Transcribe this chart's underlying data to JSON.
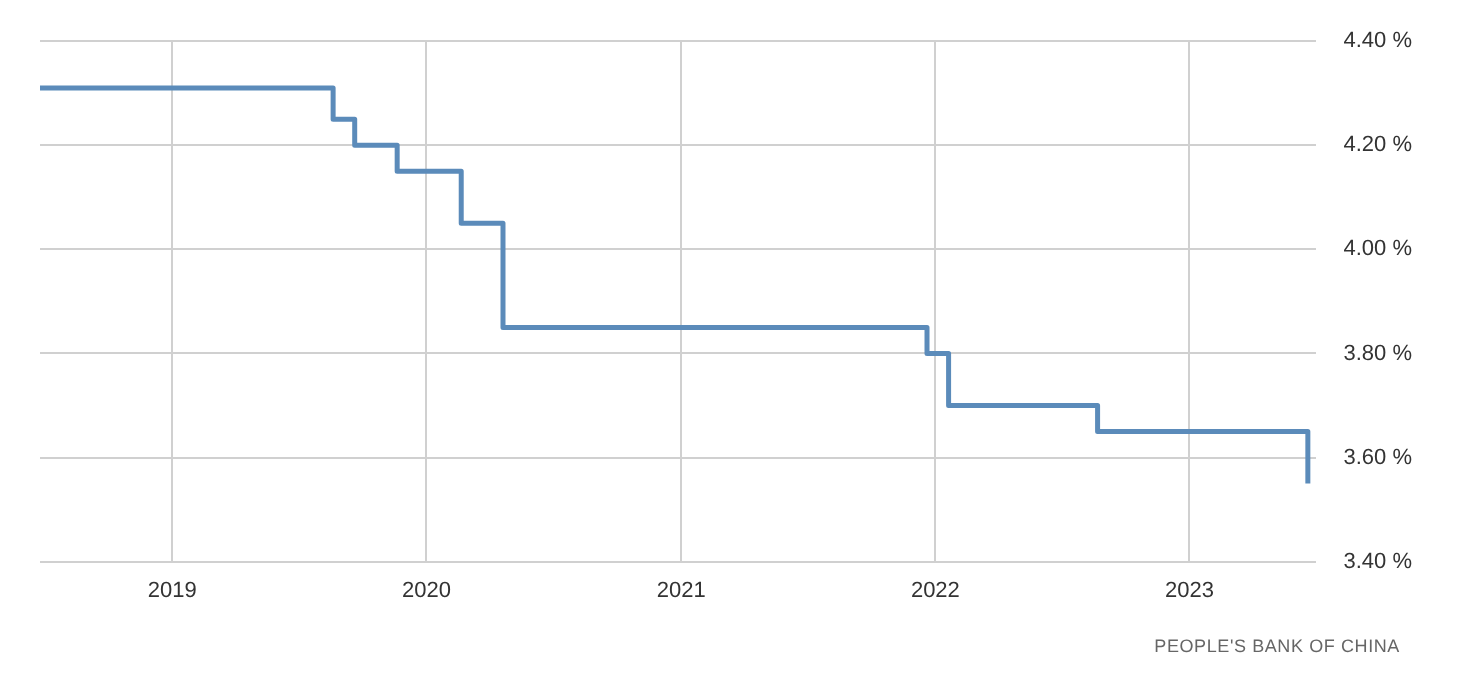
{
  "chart_data": {
    "type": "step",
    "x": [
      "2018-06-25",
      "2019-08-20",
      "2019-09-20",
      "2019-11-20",
      "2020-02-20",
      "2020-04-20",
      "2021-12-20",
      "2022-01-20",
      "2022-08-22",
      "2023-06-20"
    ],
    "series": [
      {
        "color": "#5b8bba",
        "values": [
          4.31,
          4.25,
          4.2,
          4.15,
          4.05,
          3.85,
          3.8,
          3.7,
          3.65,
          3.55
        ]
      }
    ],
    "xlim": [
      "2018-06-25",
      "2023-07-01"
    ],
    "xticks": [
      "2019",
      "2020",
      "2021",
      "2022",
      "2023"
    ],
    "ylim": [
      3.4,
      4.4
    ],
    "yticks": [
      {
        "value": 3.4,
        "label": "3.40 %"
      },
      {
        "value": 3.6,
        "label": "3.60 %"
      },
      {
        "value": 3.8,
        "label": "3.80 %"
      },
      {
        "value": 4.0,
        "label": "4.00 %"
      },
      {
        "value": 4.2,
        "label": "4.20 %"
      },
      {
        "value": 4.4,
        "label": "4.40 %"
      }
    ],
    "grid": true,
    "legend": false,
    "marker": "none",
    "line_style": "solid",
    "annotations": [
      "PEOPLE'S BANK OF CHINA"
    ]
  }
}
